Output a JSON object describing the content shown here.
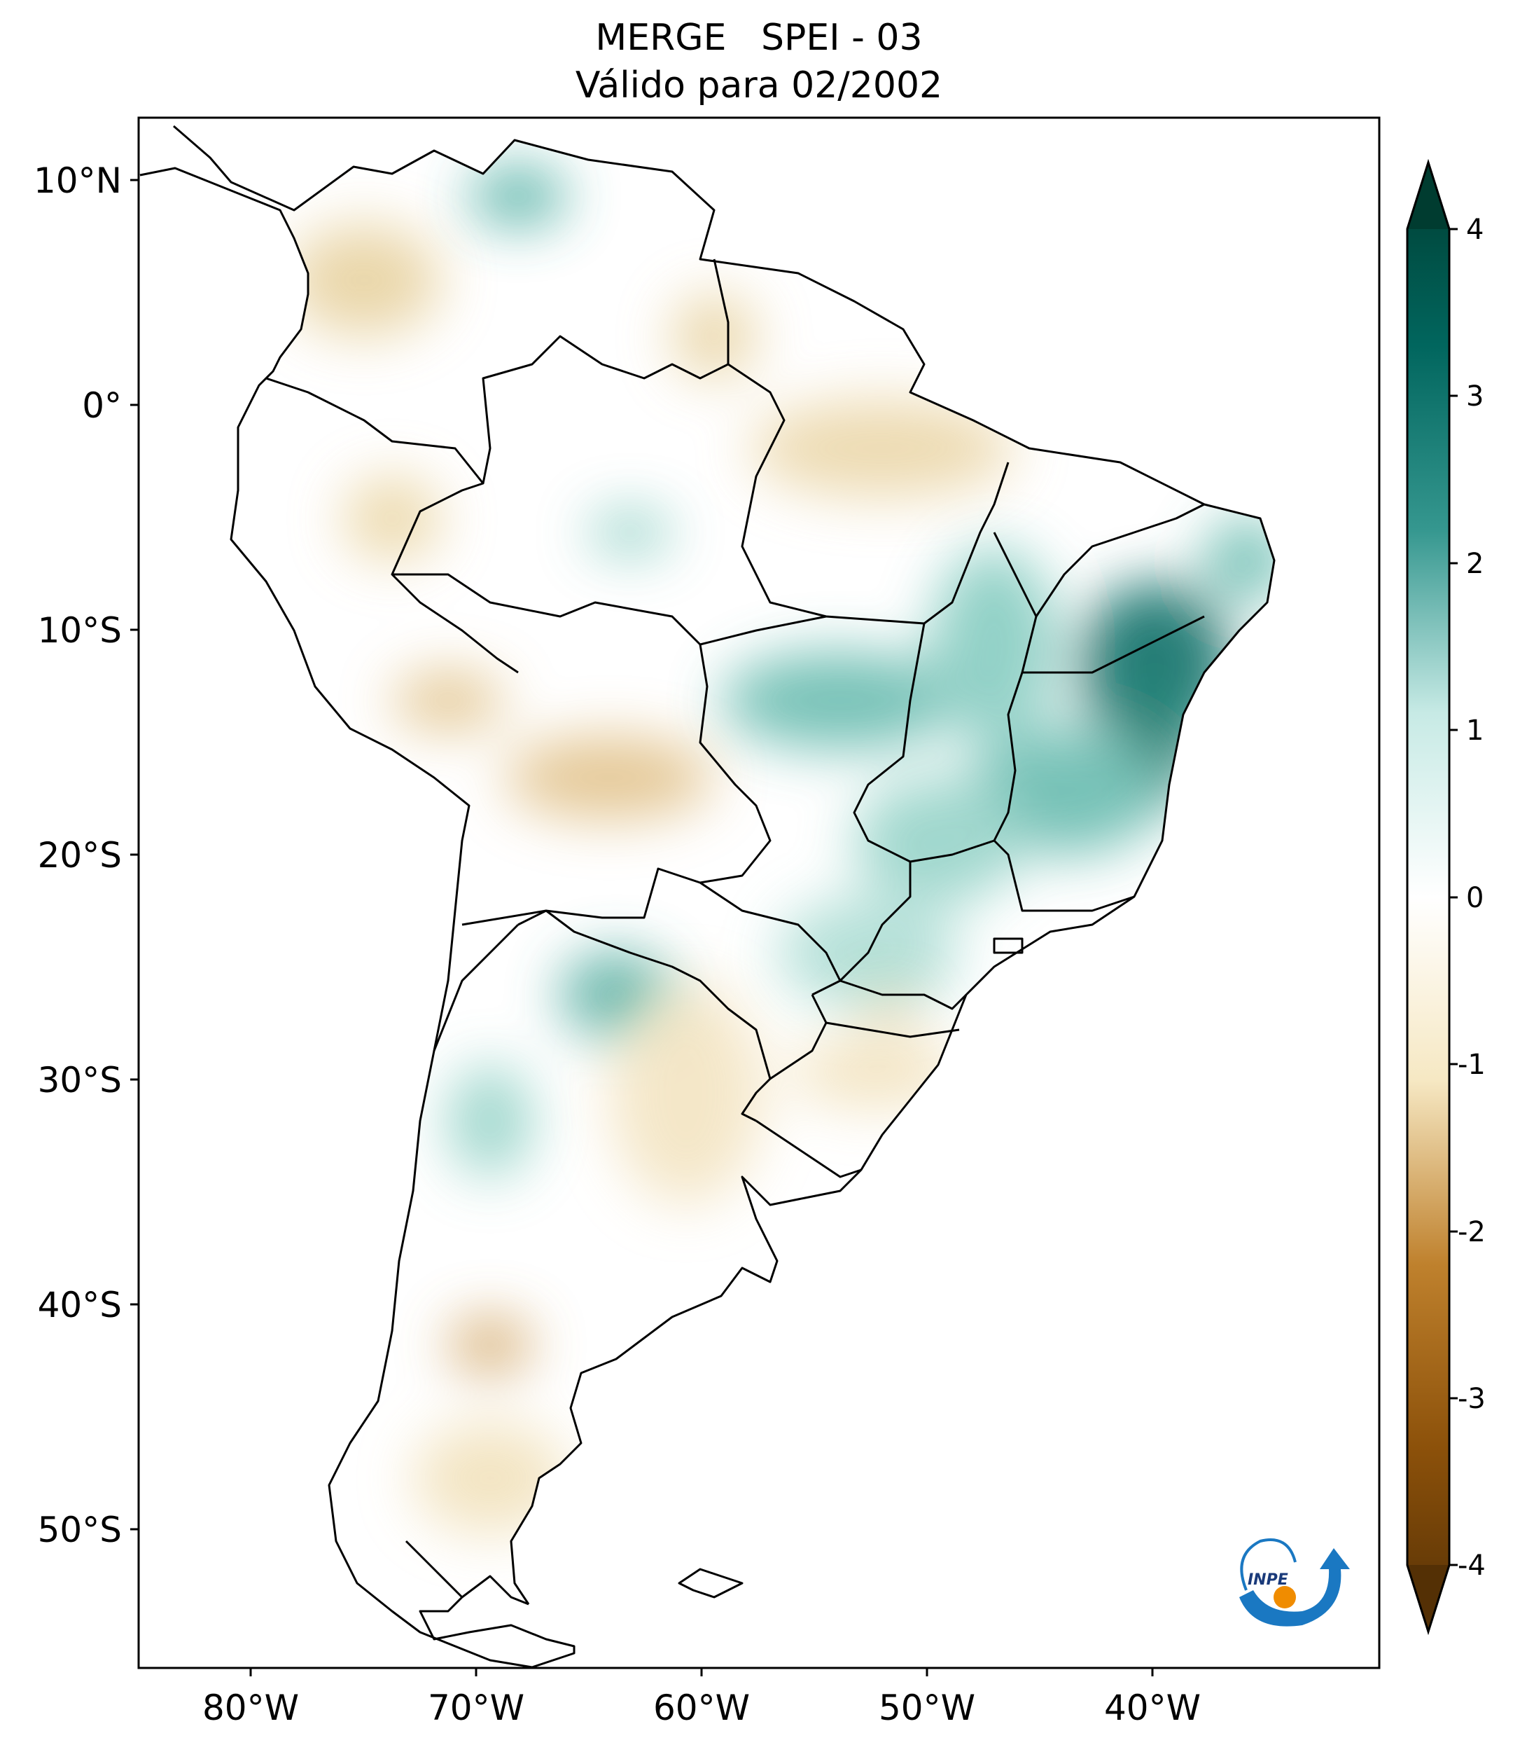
{
  "title": {
    "line1": "MERGE   SPEI - 03",
    "line2": "Válido para 02/2002"
  },
  "map": {
    "lat_labels": [
      "10°N",
      "0°",
      "10°S",
      "20°S",
      "30°S",
      "40°S",
      "50°S"
    ],
    "lon_labels": [
      "80°W",
      "70°W",
      "60°W",
      "50°W",
      "40°W"
    ],
    "extent": {
      "lon_min": -86,
      "lon_max": -31,
      "lat_min": -56.5,
      "lat_max": 13
    }
  },
  "colorbar": {
    "ticks": [
      "4",
      "3",
      "2",
      "1",
      "0",
      "-1",
      "-2",
      "-3",
      "-4"
    ],
    "min": -4,
    "max": 4,
    "extend": "both",
    "colors": {
      "wet_extreme": "#003c30",
      "wet": "#35978f",
      "neutral": "#ffffff",
      "dry": "#dfc27d",
      "dry_extreme": "#543005"
    }
  },
  "logo": {
    "text": "INPE"
  }
}
